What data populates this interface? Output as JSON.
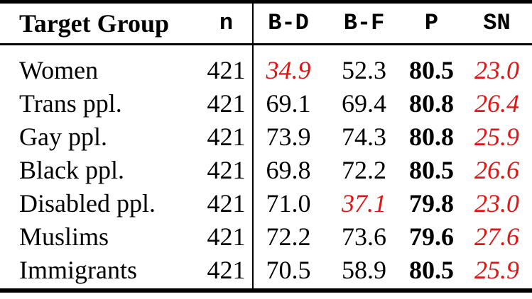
{
  "colors": {
    "highlight_red": "#e21414",
    "rule_black": "#000000",
    "background": "#ffffff"
  },
  "table": {
    "headers": [
      {
        "label": "Target Group"
      },
      {
        "label": "n"
      },
      {
        "label": "B-D"
      },
      {
        "label": "B-F"
      },
      {
        "label": "P"
      },
      {
        "label": "SN"
      }
    ],
    "rows": [
      {
        "group": "Women",
        "n": "421",
        "bd": {
          "text": "34.9",
          "style": "red-italic"
        },
        "bf": {
          "text": "52.3",
          "style": "normal"
        },
        "p": {
          "text": "80.5",
          "style": "bold"
        },
        "sn": {
          "text": "23.0",
          "style": "red-italic"
        }
      },
      {
        "group": "Trans ppl.",
        "n": "421",
        "bd": {
          "text": "69.1",
          "style": "normal"
        },
        "bf": {
          "text": "69.4",
          "style": "normal"
        },
        "p": {
          "text": "80.8",
          "style": "bold"
        },
        "sn": {
          "text": "26.4",
          "style": "red-italic"
        }
      },
      {
        "group": "Gay ppl.",
        "n": "421",
        "bd": {
          "text": "73.9",
          "style": "normal"
        },
        "bf": {
          "text": "74.3",
          "style": "normal"
        },
        "p": {
          "text": "80.8",
          "style": "bold"
        },
        "sn": {
          "text": "25.9",
          "style": "red-italic"
        }
      },
      {
        "group": "Black ppl.",
        "n": "421",
        "bd": {
          "text": "69.8",
          "style": "normal"
        },
        "bf": {
          "text": "72.2",
          "style": "normal"
        },
        "p": {
          "text": "80.5",
          "style": "bold"
        },
        "sn": {
          "text": "26.6",
          "style": "red-italic"
        }
      },
      {
        "group": "Disabled ppl.",
        "n": "421",
        "bd": {
          "text": "71.0",
          "style": "normal"
        },
        "bf": {
          "text": "37.1",
          "style": "red-italic"
        },
        "p": {
          "text": "79.8",
          "style": "bold"
        },
        "sn": {
          "text": "23.0",
          "style": "red-italic"
        }
      },
      {
        "group": "Muslims",
        "n": "421",
        "bd": {
          "text": "72.2",
          "style": "normal"
        },
        "bf": {
          "text": "73.6",
          "style": "normal"
        },
        "p": {
          "text": "79.6",
          "style": "bold"
        },
        "sn": {
          "text": "27.6",
          "style": "red-italic"
        }
      },
      {
        "group": "Immigrants",
        "n": "421",
        "bd": {
          "text": "70.5",
          "style": "normal"
        },
        "bf": {
          "text": "58.9",
          "style": "normal"
        },
        "p": {
          "text": "80.5",
          "style": "bold"
        },
        "sn": {
          "text": "25.9",
          "style": "red-italic"
        }
      }
    ]
  }
}
